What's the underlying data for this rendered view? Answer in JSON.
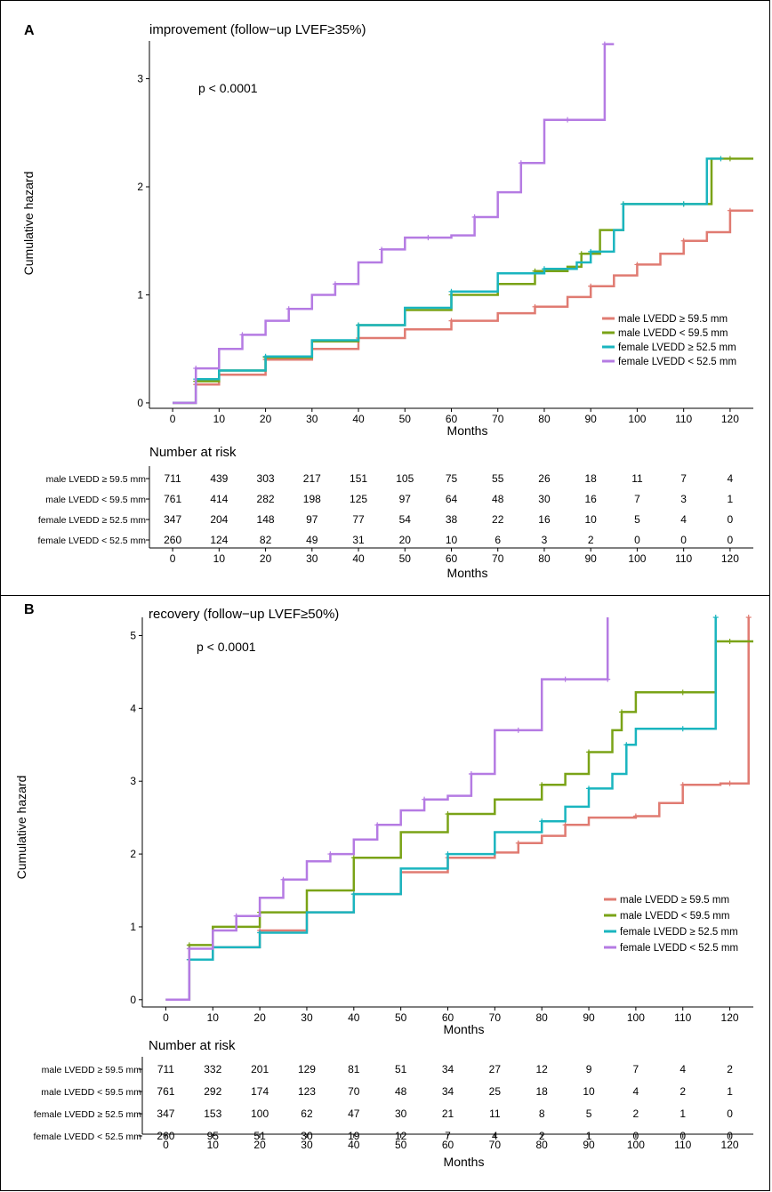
{
  "colors": {
    "male_ge": "#e07b72",
    "male_lt": "#7aa317",
    "female_ge": "#1ab5bf",
    "female_lt": "#b57be3"
  },
  "chart_data": [
    {
      "type": "line",
      "panel_label": "A",
      "title": "improvement (follow−up LVEF≥35%)",
      "p_value": "p < 0.0001",
      "xlabel": "Months",
      "ylabel": "Cumulative hazard",
      "xlim": [
        -5,
        125
      ],
      "ylim": [
        -0.05,
        3.35
      ],
      "x_ticks": [
        0,
        10,
        20,
        30,
        40,
        50,
        60,
        70,
        80,
        90,
        100,
        110,
        120
      ],
      "y_ticks": [
        0,
        1,
        2,
        3
      ],
      "legend_position": "right",
      "series": [
        {
          "name": "male LVEDD ≥ 59.5 mm",
          "color_key": "male_ge",
          "x": [
            0,
            5,
            10,
            20,
            30,
            40,
            50,
            60,
            70,
            78,
            85,
            90,
            95,
            100,
            105,
            110,
            115,
            120,
            125
          ],
          "y": [
            0,
            0.17,
            0.26,
            0.4,
            0.5,
            0.6,
            0.68,
            0.76,
            0.83,
            0.89,
            0.98,
            1.08,
            1.18,
            1.28,
            1.38,
            1.5,
            1.58,
            1.78,
            1.78
          ]
        },
        {
          "name": "male LVEDD < 59.5 mm",
          "color_key": "male_lt",
          "x": [
            0,
            5,
            10,
            20,
            30,
            40,
            50,
            60,
            70,
            78,
            85,
            88,
            92,
            97,
            100,
            110,
            116,
            120,
            125
          ],
          "y": [
            0,
            0.2,
            0.3,
            0.42,
            0.57,
            0.72,
            0.86,
            1.0,
            1.1,
            1.22,
            1.26,
            1.38,
            1.6,
            1.84,
            1.84,
            1.84,
            2.26,
            2.26,
            2.26
          ]
        },
        {
          "name": "female LVEDD ≥ 52.5 mm",
          "color_key": "female_ge",
          "x": [
            0,
            5,
            10,
            20,
            30,
            40,
            50,
            60,
            70,
            80,
            87,
            90,
            95,
            97,
            100,
            110,
            115,
            118
          ],
          "y": [
            0,
            0.22,
            0.3,
            0.43,
            0.58,
            0.72,
            0.88,
            1.03,
            1.2,
            1.24,
            1.3,
            1.4,
            1.6,
            1.84,
            1.84,
            1.84,
            2.26,
            2.26
          ]
        },
        {
          "name": "female LVEDD < 52.5 mm",
          "color_key": "female_lt",
          "x": [
            0,
            5,
            10,
            15,
            20,
            25,
            30,
            35,
            40,
            45,
            50,
            55,
            60,
            65,
            70,
            75,
            80,
            85,
            90,
            93,
            95
          ],
          "y": [
            0,
            0.32,
            0.5,
            0.63,
            0.76,
            0.87,
            1.0,
            1.1,
            1.3,
            1.42,
            1.53,
            1.53,
            1.55,
            1.72,
            1.95,
            2.22,
            2.62,
            2.62,
            2.62,
            3.32,
            3.32
          ]
        }
      ],
      "risk_table": {
        "title": "Number at risk",
        "rows": [
          {
            "label": "male LVEDD ≥ 59.5 mm",
            "values": [
              "711",
              "439",
              "303",
              "217",
              "151",
              "105",
              "75",
              "55",
              "26",
              "18",
              "11",
              "7",
              "4"
            ]
          },
          {
            "label": "male LVEDD < 59.5 mm",
            "values": [
              "761",
              "414",
              "282",
              "198",
              "125",
              "97",
              "64",
              "48",
              "30",
              "16",
              "7",
              "3",
              "1"
            ]
          },
          {
            "label": "female LVEDD ≥ 52.5 mm",
            "values": [
              "347",
              "204",
              "148",
              "97",
              "77",
              "54",
              "38",
              "22",
              "16",
              "10",
              "5",
              "4",
              "0"
            ]
          },
          {
            "label": "female LVEDD < 52.5 mm",
            "values": [
              "260",
              "124",
              "82",
              "49",
              "31",
              "20",
              "10",
              "6",
              "3",
              "2",
              "0",
              "0",
              "0"
            ]
          }
        ]
      }
    },
    {
      "type": "line",
      "panel_label": "B",
      "title": "recovery (follow−up LVEF≥50%)",
      "p_value": "p < 0.0001",
      "xlabel": "Months",
      "ylabel": "Cumulative hazard",
      "xlim": [
        -5,
        125
      ],
      "ylim": [
        -0.1,
        5.25
      ],
      "x_ticks": [
        0,
        10,
        20,
        30,
        40,
        50,
        60,
        70,
        80,
        90,
        100,
        110,
        120
      ],
      "y_ticks": [
        0,
        1,
        2,
        3,
        4,
        5
      ],
      "legend_position": "right",
      "series": [
        {
          "name": "male LVEDD ≥ 59.5 mm",
          "color_key": "male_ge",
          "x": [
            0,
            5,
            10,
            20,
            30,
            40,
            50,
            60,
            70,
            75,
            80,
            85,
            90,
            100,
            105,
            110,
            118,
            120,
            124,
            124
          ],
          "y": [
            0,
            0.55,
            0.72,
            0.95,
            1.2,
            1.45,
            1.75,
            1.95,
            2.02,
            2.15,
            2.25,
            2.4,
            2.5,
            2.52,
            2.7,
            2.95,
            2.97,
            2.97,
            2.97,
            5.25
          ]
        },
        {
          "name": "male LVEDD < 59.5 mm",
          "color_key": "male_lt",
          "x": [
            0,
            5,
            10,
            20,
            30,
            40,
            50,
            60,
            70,
            80,
            85,
            90,
            95,
            97,
            100,
            110,
            117,
            120,
            125
          ],
          "y": [
            0,
            0.75,
            1.0,
            1.2,
            1.5,
            1.95,
            2.3,
            2.55,
            2.75,
            2.95,
            3.1,
            3.4,
            3.7,
            3.95,
            4.22,
            4.22,
            4.92,
            4.92,
            4.92
          ]
        },
        {
          "name": "female LVEDD ≥ 52.5 mm",
          "color_key": "female_ge",
          "x": [
            0,
            5,
            10,
            20,
            30,
            40,
            50,
            60,
            70,
            80,
            85,
            90,
            95,
            98,
            100,
            110,
            117,
            117
          ],
          "y": [
            0,
            0.55,
            0.72,
            0.92,
            1.2,
            1.45,
            1.8,
            2.0,
            2.3,
            2.45,
            2.65,
            2.9,
            3.1,
            3.5,
            3.72,
            3.72,
            3.72,
            5.25
          ]
        },
        {
          "name": "female LVEDD < 52.5 mm",
          "color_key": "female_lt",
          "x": [
            0,
            5,
            10,
            15,
            20,
            25,
            30,
            35,
            40,
            45,
            50,
            55,
            60,
            65,
            70,
            75,
            80,
            85,
            90,
            94,
            94
          ],
          "y": [
            0,
            0.7,
            0.95,
            1.15,
            1.4,
            1.65,
            1.9,
            2.0,
            2.2,
            2.4,
            2.6,
            2.75,
            2.8,
            3.1,
            3.7,
            3.7,
            4.4,
            4.4,
            4.4,
            4.4,
            5.25
          ]
        }
      ],
      "risk_table": {
        "title": "Number at risk",
        "rows": [
          {
            "label": "male LVEDD ≥ 59.5 mm",
            "values": [
              "711",
              "332",
              "201",
              "129",
              "81",
              "51",
              "34",
              "27",
              "12",
              "9",
              "7",
              "4",
              "2"
            ]
          },
          {
            "label": "male LVEDD < 59.5 mm",
            "values": [
              "761",
              "292",
              "174",
              "123",
              "70",
              "48",
              "34",
              "25",
              "18",
              "10",
              "4",
              "2",
              "1"
            ]
          },
          {
            "label": "female LVEDD ≥ 52.5 mm",
            "values": [
              "347",
              "153",
              "100",
              "62",
              "47",
              "30",
              "21",
              "11",
              "8",
              "5",
              "2",
              "1",
              "0"
            ]
          },
          {
            "label": "female LVEDD < 52.5 mm",
            "values": [
              "260",
              "95",
              "51",
              "30",
              "19",
              "12",
              "7",
              "4",
              "2",
              "1",
              "0",
              "0",
              "0"
            ]
          }
        ]
      }
    }
  ]
}
